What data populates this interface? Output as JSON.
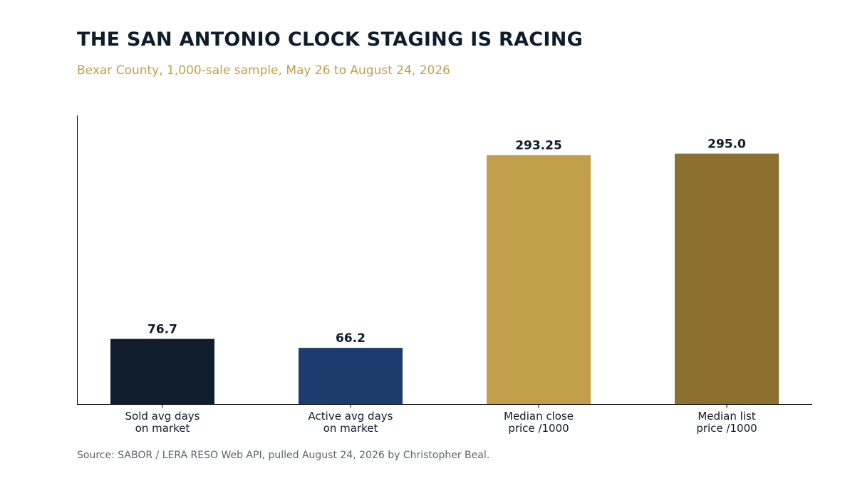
{
  "header": {
    "title": "THE SAN ANTONIO CLOCK STAGING IS RACING",
    "subtitle": "Bexar County, 1,000-sale sample, May 26 to August 24, 2026"
  },
  "footer": {
    "source": "Source: SABOR / LERA RESO Web API, pulled August 24, 2026 by Christopher Beal."
  },
  "chart_data": {
    "type": "bar",
    "title": "THE SAN ANTONIO CLOCK STAGING IS RACING",
    "subtitle": "Bexar County, 1,000-sale sample, May 26 to August 24, 2026",
    "categories": [
      [
        "Sold avg days",
        "on market"
      ],
      [
        "Active avg days",
        "on market"
      ],
      [
        "Median close",
        "price /1000"
      ],
      [
        "Median list",
        "price /1000"
      ]
    ],
    "values": [
      76.7,
      66.2,
      293.25,
      295.0
    ],
    "value_labels": [
      "76.7",
      "66.2",
      "293.25",
      "295.0"
    ],
    "colors": [
      "#101d2d",
      "#1c3c6e",
      "#c29e4b",
      "#8b7030"
    ],
    "xlabel": "",
    "ylabel": "",
    "ylim": [
      0,
      340
    ],
    "grid": false,
    "legend": "none"
  }
}
